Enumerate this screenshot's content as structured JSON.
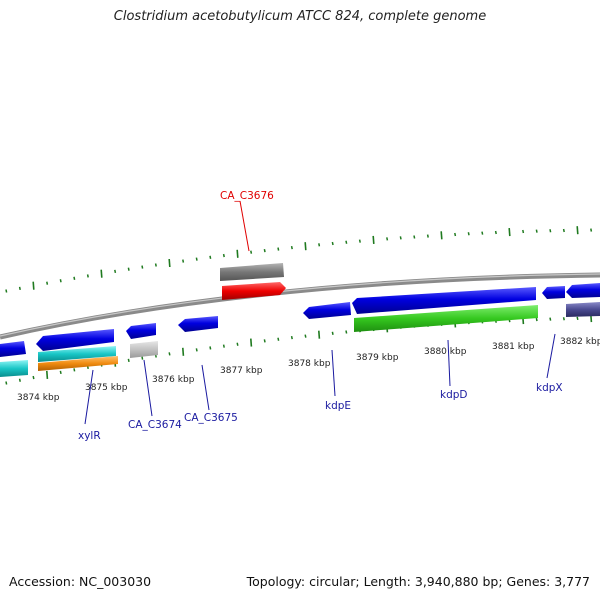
{
  "title": "Clostridium acetobutylicum ATCC 824, complete genome",
  "footer": {
    "accession": "Accession: NC_003030",
    "summary": "Topology: circular; Length: 3,940,880 bp; Genes: 3,777"
  },
  "colors": {
    "backbone": "#8a8a8a",
    "ticks": "#1f7a1f",
    "label_highlight": "#e00000",
    "label_normal": "#1a1aa0"
  },
  "kbp_labels": [
    "3874 kbp",
    "3875 kbp",
    "3876 kbp",
    "3877 kbp",
    "3878 kbp",
    "3879 kbp",
    "3880 kbp",
    "3881 kbp",
    "3882 kbp"
  ],
  "gene_labels": {
    "CA_C3676": "CA_C3676",
    "xylR": "xylR",
    "CA_C3674": "CA_C3674",
    "CA_C3675": "CA_C3675",
    "kdpE": "kdpE",
    "kdpD": "kdpD",
    "kdpX": "kdpX"
  }
}
